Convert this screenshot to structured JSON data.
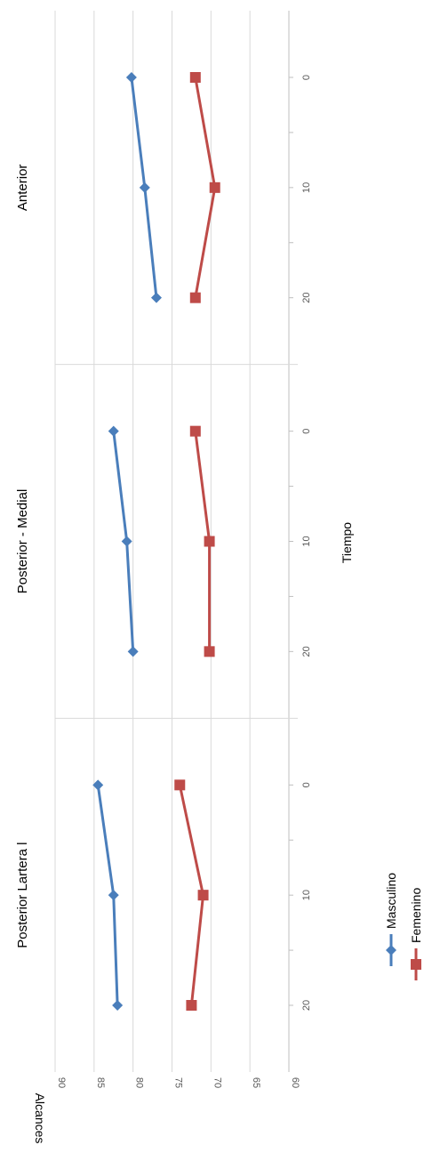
{
  "chart_data": {
    "type": "line",
    "orientation": "rotated 90° clockwise (time axis runs top-to-bottom, value axis runs right-to-left)",
    "panels": [
      {
        "title": "Anterior",
        "x": [
          0,
          10,
          20
        ],
        "series": [
          {
            "name": "Masculino",
            "values": [
              80.2,
              78.5,
              77.0
            ]
          },
          {
            "name": "Femenino",
            "values": [
              72.0,
              69.5,
              72.0
            ]
          }
        ]
      },
      {
        "title": "Posterior - Medial",
        "x": [
          0,
          10,
          20
        ],
        "series": [
          {
            "name": "Masculino",
            "values": [
              82.5,
              80.8,
              80.0
            ]
          },
          {
            "name": "Femenino",
            "values": [
              72.0,
              70.2,
              70.2
            ]
          }
        ]
      },
      {
        "title": "Posterior Lartera l",
        "x": [
          0,
          10,
          20
        ],
        "series": [
          {
            "name": "Masculino",
            "values": [
              84.5,
              82.5,
              82.0
            ]
          },
          {
            "name": "Femenino",
            "values": [
              74.0,
              71.0,
              72.5
            ]
          }
        ]
      }
    ],
    "xlabel": "Tiempo",
    "ylabel": "Alcances",
    "ylim": [
      60,
      90
    ],
    "y_ticks": [
      "60",
      "65",
      "70",
      "75",
      "80",
      "85",
      "90"
    ],
    "x_ticks": [
      "0",
      "10",
      "20"
    ],
    "grid": true,
    "legend": [
      "Masculino",
      "Femenino"
    ],
    "legend_placement": "bottom",
    "colors": {
      "Masculino": "#4a7ebb",
      "Femenino": "#be4b48"
    }
  }
}
